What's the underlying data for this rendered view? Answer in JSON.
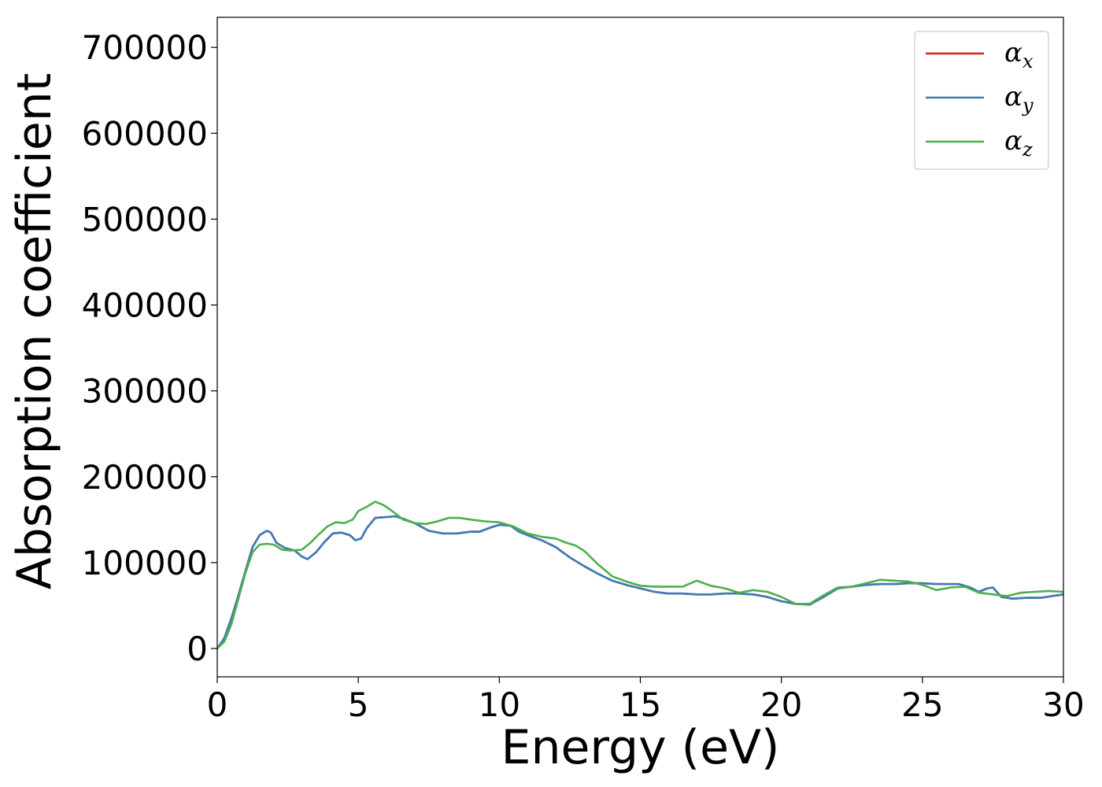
{
  "chart_data": {
    "type": "line",
    "xlabel": "Energy (eV)",
    "ylabel": "Absorption coefficient",
    "xlim": [
      0,
      30
    ],
    "ylim": [
      -33000,
      735000
    ],
    "xticks": [
      0,
      5,
      10,
      15,
      20,
      25,
      30
    ],
    "yticks": [
      0,
      100000,
      200000,
      300000,
      400000,
      500000,
      600000,
      700000
    ],
    "grid": false,
    "legend_position": "top-right",
    "series": [
      {
        "name": "αx",
        "symbol": "α",
        "subscript": "x",
        "color": "#e41a1c",
        "x": [
          0,
          0.25,
          0.5,
          0.75,
          1.0,
          1.25,
          1.5,
          1.75,
          1.9,
          2.1,
          2.4,
          2.75,
          3.0,
          3.2,
          3.5,
          3.8,
          4.1,
          4.4,
          4.7,
          4.9,
          5.1,
          5.3,
          5.6,
          6.0,
          6.3,
          6.6,
          7.0,
          7.5,
          8.0,
          8.5,
          9.0,
          9.3,
          9.7,
          10.0,
          10.4,
          10.7,
          11.0,
          11.5,
          12.0,
          12.5,
          13.0,
          13.5,
          14.0,
          14.5,
          15.0,
          15.5,
          16.0,
          16.5,
          17.0,
          17.5,
          18.0,
          18.5,
          19.0,
          19.5,
          20.0,
          20.5,
          21.0,
          21.5,
          22.0,
          22.5,
          23.0,
          23.5,
          24.0,
          24.5,
          25.0,
          25.5,
          26.0,
          26.3,
          26.7,
          27.0,
          27.3,
          27.5,
          27.8,
          28.2,
          28.7,
          29.2,
          29.6,
          30.0
        ],
        "y": [
          0,
          12000,
          35000,
          62000,
          90000,
          118000,
          132000,
          137000,
          135000,
          123000,
          117000,
          114000,
          107000,
          104000,
          112000,
          124000,
          134000,
          135000,
          132000,
          126000,
          128000,
          140000,
          152000,
          153000,
          154000,
          151000,
          146000,
          137000,
          134000,
          134000,
          136000,
          136000,
          141000,
          144000,
          143000,
          136000,
          132000,
          126000,
          118000,
          106000,
          96000,
          87000,
          79000,
          74000,
          70000,
          66000,
          64000,
          64000,
          63000,
          63000,
          64000,
          64000,
          63000,
          60000,
          55000,
          52000,
          51000,
          60000,
          70000,
          72000,
          74000,
          75000,
          75000,
          76000,
          76000,
          75000,
          75000,
          75000,
          71000,
          66000,
          70000,
          71000,
          60000,
          58000,
          59000,
          59000,
          61000,
          63000
        ]
      },
      {
        "name": "αy",
        "symbol": "α",
        "subscript": "y",
        "color": "#377eb8",
        "x": [
          0,
          0.25,
          0.5,
          0.75,
          1.0,
          1.25,
          1.5,
          1.75,
          1.9,
          2.1,
          2.4,
          2.75,
          3.0,
          3.2,
          3.5,
          3.8,
          4.1,
          4.4,
          4.7,
          4.9,
          5.1,
          5.3,
          5.6,
          6.0,
          6.3,
          6.6,
          7.0,
          7.5,
          8.0,
          8.5,
          9.0,
          9.3,
          9.7,
          10.0,
          10.4,
          10.7,
          11.0,
          11.5,
          12.0,
          12.5,
          13.0,
          13.5,
          14.0,
          14.5,
          15.0,
          15.5,
          16.0,
          16.5,
          17.0,
          17.5,
          18.0,
          18.5,
          19.0,
          19.5,
          20.0,
          20.5,
          21.0,
          21.5,
          22.0,
          22.5,
          23.0,
          23.5,
          24.0,
          24.5,
          25.0,
          25.5,
          26.0,
          26.3,
          26.7,
          27.0,
          27.3,
          27.5,
          27.8,
          28.2,
          28.7,
          29.2,
          29.6,
          30.0
        ],
        "y": [
          0,
          12000,
          35000,
          62000,
          90000,
          118000,
          132000,
          137000,
          135000,
          123000,
          117000,
          114000,
          107000,
          104000,
          112000,
          124000,
          134000,
          135000,
          132000,
          126000,
          128000,
          140000,
          152000,
          153000,
          154000,
          151000,
          146000,
          137000,
          134000,
          134000,
          136000,
          136000,
          141000,
          144000,
          143000,
          136000,
          132000,
          126000,
          118000,
          106000,
          96000,
          87000,
          79000,
          74000,
          70000,
          66000,
          64000,
          64000,
          63000,
          63000,
          64000,
          64000,
          63000,
          60000,
          55000,
          52000,
          51000,
          60000,
          70000,
          72000,
          74000,
          75000,
          75000,
          76000,
          76000,
          75000,
          75000,
          75000,
          71000,
          66000,
          70000,
          71000,
          60000,
          58000,
          59000,
          59000,
          61000,
          63000
        ]
      },
      {
        "name": "αz",
        "symbol": "α",
        "subscript": "z",
        "color": "#4daf4a",
        "x": [
          0,
          0.25,
          0.5,
          0.75,
          1.0,
          1.25,
          1.5,
          1.75,
          2.0,
          2.3,
          2.6,
          3.0,
          3.3,
          3.6,
          3.9,
          4.2,
          4.5,
          4.8,
          5.0,
          5.3,
          5.6,
          5.9,
          6.2,
          6.6,
          7.0,
          7.4,
          7.8,
          8.2,
          8.6,
          9.0,
          9.5,
          10.0,
          10.5,
          11.0,
          11.5,
          12.0,
          12.3,
          12.7,
          13.0,
          13.5,
          14.0,
          14.5,
          15.0,
          15.5,
          16.0,
          16.5,
          17.0,
          17.5,
          18.0,
          18.5,
          19.0,
          19.5,
          20.0,
          20.5,
          21.0,
          21.5,
          22.0,
          22.5,
          23.0,
          23.5,
          24.0,
          24.5,
          25.0,
          25.5,
          26.0,
          26.5,
          27.0,
          27.5,
          28.0,
          28.5,
          29.0,
          29.5,
          30.0
        ],
        "y": [
          0,
          8000,
          28000,
          58000,
          88000,
          112000,
          121000,
          122000,
          121000,
          115000,
          114000,
          115000,
          123000,
          133000,
          142000,
          147000,
          146000,
          150000,
          160000,
          165000,
          171000,
          167000,
          160000,
          150000,
          146000,
          145000,
          148000,
          152000,
          152000,
          150000,
          148000,
          147000,
          142000,
          134000,
          130000,
          128000,
          124000,
          120000,
          114000,
          98000,
          84000,
          78000,
          73000,
          72000,
          72000,
          72000,
          79000,
          73000,
          70000,
          65000,
          68000,
          66000,
          60000,
          52000,
          52000,
          62000,
          71000,
          72000,
          76000,
          80000,
          79000,
          78000,
          74000,
          68000,
          71000,
          72000,
          65000,
          63000,
          61000,
          65000,
          66000,
          67000,
          66000
        ]
      }
    ]
  }
}
